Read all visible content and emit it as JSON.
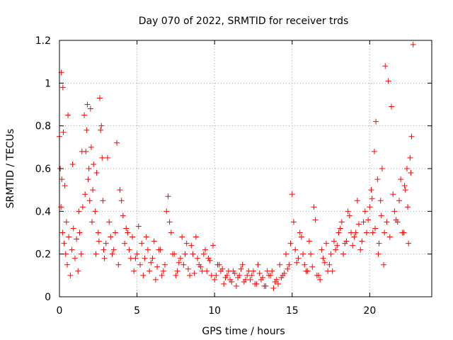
{
  "chart_data": {
    "type": "scatter",
    "title": "Day 070 of 2022, SRMTID for receiver trds",
    "xlabel": "GPS time / hours",
    "ylabel": "SRMTID / TECUs",
    "xlim": [
      0,
      24
    ],
    "ylim": [
      0,
      1.2
    ],
    "xticks": [
      0,
      5,
      10,
      15,
      20
    ],
    "xtick_labels": [
      "0",
      "5",
      "10",
      "15",
      "20"
    ],
    "yticks": [
      0,
      0.2,
      0.4,
      0.6,
      0.8,
      1,
      1.2
    ],
    "ytick_labels": [
      "0",
      "0.2",
      "0.4",
      "0.6",
      "0.8",
      "1",
      "1.2"
    ],
    "grid": true,
    "marker": "plus",
    "colors": {
      "series": "#ff0000",
      "grid": "#a0a0a0",
      "axes": "#000000"
    },
    "series": [
      {
        "name": "SRMTID",
        "x": [
          0.0,
          0.05,
          0.1,
          0.15,
          0.2,
          0.25,
          0.3,
          0.35,
          0.4,
          0.45,
          0.5,
          0.6,
          0.7,
          0.8,
          0.9,
          1.0,
          1.1,
          1.2,
          1.3,
          1.4,
          1.5,
          1.6,
          1.7,
          1.75,
          1.8,
          1.85,
          1.9,
          1.95,
          2.0,
          2.05,
          2.1,
          2.15,
          2.2,
          2.3,
          2.4,
          2.5,
          2.6,
          2.65,
          2.7,
          2.75,
          2.8,
          2.85,
          2.9,
          3.0,
          3.2,
          3.4,
          3.6,
          3.8,
          3.9,
          4.0,
          4.1,
          4.2,
          4.4,
          4.6,
          4.8,
          5.0,
          5.2,
          5.4,
          5.6,
          5.8,
          6.0,
          6.2,
          6.4,
          6.6,
          6.8,
          6.9,
          7.0,
          7.1,
          7.2,
          7.4,
          7.6,
          7.8,
          8.0,
          8.2,
          8.4,
          8.6,
          8.8,
          9.0,
          9.2,
          9.4,
          9.6,
          9.8,
          10.0,
          10.2,
          10.4,
          10.6,
          10.8,
          11.0,
          11.2,
          11.4,
          11.6,
          11.8,
          12.0,
          12.2,
          12.4,
          12.6,
          12.8,
          13.0,
          13.2,
          13.4,
          13.6,
          13.8,
          14.0,
          14.2,
          14.4,
          14.6,
          14.8,
          14.9,
          15.0,
          15.1,
          15.2,
          15.4,
          15.6,
          15.8,
          16.0,
          16.2,
          16.4,
          16.6,
          16.8,
          17.0,
          17.2,
          17.4,
          17.6,
          17.8,
          18.0,
          18.2,
          18.4,
          18.6,
          18.8,
          19.0,
          19.2,
          19.4,
          19.6,
          19.8,
          20.0,
          20.1,
          20.2,
          20.3,
          20.4,
          20.5,
          20.6,
          20.7,
          20.8,
          20.9,
          21.0,
          21.2,
          21.4,
          21.6,
          21.8,
          22.0,
          22.2,
          22.3,
          22.4,
          22.5,
          22.6,
          22.7,
          22.8,
          0.12,
          0.22,
          0.55,
          0.85,
          1.25,
          1.45,
          1.65,
          2.35,
          2.55,
          3.1,
          3.3,
          3.5,
          3.7,
          4.3,
          4.5,
          4.7,
          4.9,
          5.1,
          5.3,
          5.5,
          5.7,
          5.9,
          6.1,
          6.3,
          6.5,
          6.7,
          7.3,
          7.5,
          7.7,
          7.9,
          8.1,
          8.3,
          8.5,
          8.7,
          8.9,
          9.1,
          9.3,
          9.5,
          9.7,
          9.9,
          10.1,
          10.3,
          10.5,
          10.7,
          10.9,
          11.1,
          11.3,
          11.5,
          11.7,
          11.9,
          12.1,
          12.3,
          12.5,
          12.7,
          12.9,
          13.1,
          13.3,
          13.5,
          13.7,
          13.9,
          14.1,
          14.3,
          14.5,
          14.7,
          15.3,
          15.5,
          15.7,
          15.9,
          16.1,
          16.3,
          16.5,
          16.7,
          16.9,
          17.1,
          17.3,
          17.5,
          17.7,
          17.9,
          18.1,
          18.3,
          18.5,
          18.7,
          18.9,
          19.1,
          19.3,
          19.5,
          19.7,
          19.9,
          20.15,
          20.35,
          20.55,
          20.75,
          20.95,
          21.1,
          21.3,
          21.5,
          21.7,
          21.9,
          22.1,
          22.25,
          22.45,
          22.65
        ],
        "y": [
          0.75,
          0.6,
          0.42,
          0.55,
          0.3,
          0.77,
          0.25,
          0.52,
          0.2,
          0.35,
          0.15,
          0.28,
          0.1,
          0.22,
          0.32,
          0.18,
          0.27,
          0.12,
          0.3,
          0.2,
          0.42,
          0.85,
          0.68,
          0.78,
          0.9,
          0.55,
          0.6,
          0.45,
          0.88,
          0.7,
          0.35,
          0.5,
          0.62,
          0.4,
          0.58,
          0.3,
          0.93,
          0.78,
          0.8,
          0.65,
          0.45,
          0.22,
          0.18,
          0.25,
          0.35,
          0.2,
          0.3,
          0.15,
          0.5,
          0.45,
          0.38,
          0.25,
          0.3,
          0.18,
          0.12,
          0.2,
          0.15,
          0.1,
          0.28,
          0.12,
          0.18,
          0.08,
          0.22,
          0.1,
          0.15,
          0.4,
          0.47,
          0.35,
          0.3,
          0.2,
          0.12,
          0.18,
          0.15,
          0.25,
          0.1,
          0.2,
          0.28,
          0.15,
          0.12,
          0.22,
          0.18,
          0.1,
          0.08,
          0.15,
          0.12,
          0.06,
          0.1,
          0.08,
          0.12,
          0.05,
          0.1,
          0.15,
          0.08,
          0.12,
          0.1,
          0.06,
          0.15,
          0.08,
          0.05,
          0.12,
          0.1,
          0.04,
          0.08,
          0.15,
          0.1,
          0.2,
          0.15,
          0.25,
          0.48,
          0.35,
          0.22,
          0.18,
          0.28,
          0.15,
          0.12,
          0.2,
          0.42,
          0.1,
          0.08,
          0.18,
          0.25,
          0.15,
          0.12,
          0.22,
          0.3,
          0.35,
          0.25,
          0.4,
          0.3,
          0.28,
          0.45,
          0.22,
          0.35,
          0.3,
          0.42,
          0.5,
          0.3,
          0.68,
          0.82,
          0.55,
          0.25,
          0.45,
          0.6,
          0.15,
          1.08,
          1.01,
          0.89,
          0.4,
          0.35,
          0.55,
          0.3,
          0.5,
          0.6,
          0.25,
          0.65,
          0.75,
          1.18,
          1.05,
          0.98,
          0.85,
          0.62,
          0.4,
          0.68,
          0.48,
          0.2,
          0.26,
          0.65,
          0.28,
          0.22,
          0.72,
          0.32,
          0.22,
          0.28,
          0.18,
          0.33,
          0.25,
          0.18,
          0.22,
          0.16,
          0.26,
          0.14,
          0.22,
          0.12,
          0.2,
          0.1,
          0.16,
          0.28,
          0.2,
          0.13,
          0.24,
          0.11,
          0.18,
          0.14,
          0.2,
          0.12,
          0.17,
          0.24,
          0.1,
          0.15,
          0.13,
          0.09,
          0.12,
          0.07,
          0.11,
          0.09,
          0.13,
          0.07,
          0.1,
          0.08,
          0.12,
          0.06,
          0.11,
          0.09,
          0.05,
          0.1,
          0.12,
          0.07,
          0.06,
          0.09,
          0.11,
          0.13,
          0.16,
          0.3,
          0.2,
          0.12,
          0.26,
          0.14,
          0.36,
          0.1,
          0.22,
          0.16,
          0.12,
          0.2,
          0.26,
          0.24,
          0.32,
          0.2,
          0.26,
          0.38,
          0.24,
          0.3,
          0.34,
          0.26,
          0.4,
          0.36,
          0.46,
          0.32,
          0.2,
          0.38,
          0.3,
          0.35,
          0.28,
          0.48,
          0.36,
          0.45,
          0.3,
          0.52,
          0.42,
          0.58
        ]
      }
    ]
  }
}
